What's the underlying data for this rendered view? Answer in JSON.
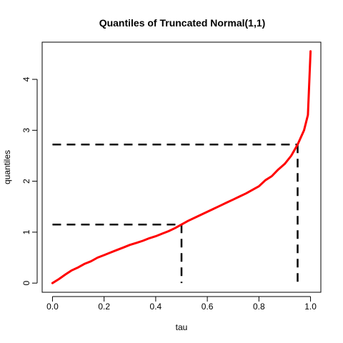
{
  "chart_data": {
    "type": "line",
    "title": "Quantiles of Truncated Normal(1,1)",
    "xlabel": "tau",
    "ylabel": "quantiles",
    "xlim": [
      -0.04,
      1.04
    ],
    "ylim": [
      -0.18,
      4.73
    ],
    "xticks": [
      0.0,
      0.2,
      0.4,
      0.6,
      0.8,
      1.0
    ],
    "xtick_labels": [
      "0.0",
      "0.2",
      "0.4",
      "0.6",
      "0.8",
      "1.0"
    ],
    "yticks": [
      0,
      1,
      2,
      3,
      4
    ],
    "ytick_labels": [
      "0",
      "1",
      "2",
      "3",
      "4"
    ],
    "grid": false,
    "series": [
      {
        "color": "#ff0000",
        "x": [
          0.0,
          0.025,
          0.05,
          0.075,
          0.1,
          0.125,
          0.15,
          0.175,
          0.2,
          0.225,
          0.25,
          0.275,
          0.3,
          0.325,
          0.35,
          0.375,
          0.4,
          0.425,
          0.45,
          0.475,
          0.5,
          0.525,
          0.55,
          0.575,
          0.6,
          0.625,
          0.65,
          0.675,
          0.7,
          0.725,
          0.75,
          0.775,
          0.8,
          0.825,
          0.85,
          0.875,
          0.9,
          0.925,
          0.95,
          0.975,
          0.99,
          1.0
        ],
        "y": [
          0.0,
          0.08,
          0.17,
          0.25,
          0.31,
          0.38,
          0.43,
          0.5,
          0.55,
          0.6,
          0.65,
          0.7,
          0.75,
          0.79,
          0.83,
          0.88,
          0.92,
          0.97,
          1.02,
          1.08,
          1.15,
          1.22,
          1.28,
          1.34,
          1.4,
          1.46,
          1.52,
          1.58,
          1.64,
          1.7,
          1.76,
          1.83,
          1.9,
          2.02,
          2.1,
          2.23,
          2.34,
          2.5,
          2.72,
          3.0,
          3.3,
          4.55
        ]
      }
    ],
    "annotations": [
      {
        "type": "dashed-guide",
        "tau": 0.5,
        "quantile": 1.15,
        "color": "#000000"
      },
      {
        "type": "dashed-guide",
        "tau": 0.95,
        "quantile": 2.72,
        "color": "#000000"
      }
    ]
  }
}
